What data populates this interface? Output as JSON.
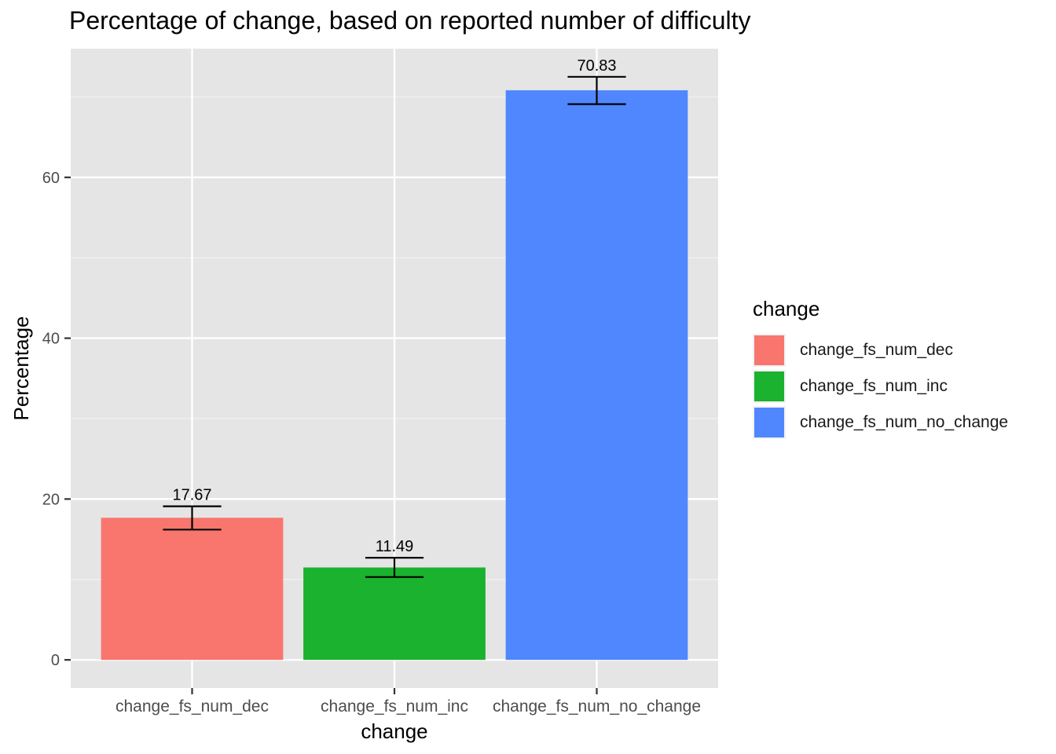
{
  "chart_data": {
    "type": "bar",
    "title": "Percentage of change, based on reported number of difficulty",
    "xlabel": "change",
    "ylabel": "Percentage",
    "categories": [
      "change_fs_num_dec",
      "change_fs_num_inc",
      "change_fs_num_no_change"
    ],
    "values": [
      17.67,
      11.49,
      70.83
    ],
    "data_labels": [
      "17.67",
      "11.49",
      "70.83"
    ],
    "error_bars": [
      {
        "low": 16.2,
        "high": 19.1
      },
      {
        "low": 10.3,
        "high": 12.7
      },
      {
        "low": 69.1,
        "high": 72.5
      }
    ],
    "colors": [
      "#F8766D",
      "#1AB22E",
      "#5087FF"
    ],
    "ylim": [
      -3.5,
      76
    ],
    "yticks": [
      0,
      20,
      40,
      60
    ],
    "ytick_labels": [
      "0",
      "20",
      "40",
      "60"
    ],
    "grid": true,
    "legend": {
      "title": "change",
      "placement": "right",
      "items": [
        "change_fs_num_dec",
        "change_fs_num_inc",
        "change_fs_num_no_change"
      ]
    }
  }
}
